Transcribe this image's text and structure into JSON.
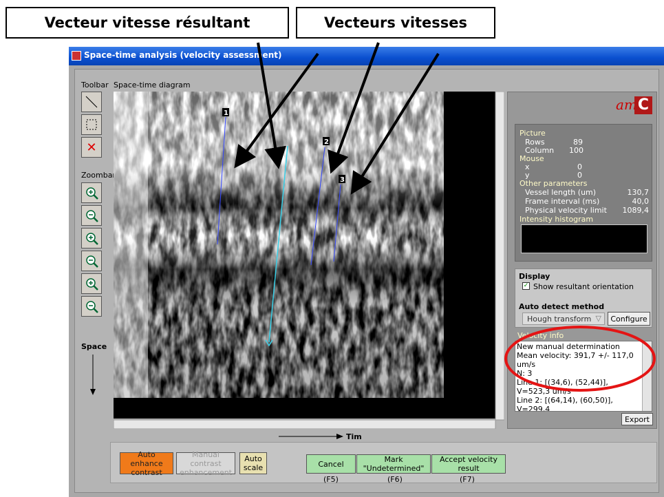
{
  "annotations": {
    "resultant_label": "Vecteur vitesse résultant",
    "vectors_label": "Vecteurs vitesses"
  },
  "window": {
    "title": "Space-time analysis (velocity assessment)"
  },
  "left": {
    "toolbar": "Toolbar",
    "diagram": "Space-time diagram",
    "zoombar": "Zoombar",
    "space": "Space",
    "time": "Tim"
  },
  "lines": {
    "labels": [
      "1",
      "2",
      "3"
    ]
  },
  "info": {
    "logo": "am",
    "picture": "Picture",
    "rows": {
      "label": "Rows",
      "value": "89"
    },
    "column": {
      "label": "Column",
      "value": "100"
    },
    "mouse": "Mouse",
    "x": {
      "label": "x",
      "value": "0"
    },
    "y": {
      "label": "y",
      "value": "0"
    },
    "other": "Other parameters",
    "params": [
      {
        "label": "Vessel length (um)",
        "value": "130,7"
      },
      {
        "label": "Frame interval (ms)",
        "value": "40,0"
      },
      {
        "label": "Physical velocity limit",
        "value": "1089,4"
      }
    ],
    "histogram": "Intensity histogram"
  },
  "display": {
    "title": "Display",
    "checkbox": "Show resultant orientation",
    "method_title": "Auto detect method",
    "method": "Hough transform",
    "configure": "Configure"
  },
  "velocity": {
    "title": "Velocity info",
    "lines": [
      "New manual determination",
      "Mean velocity: 391,7 +/- 117,0 um/s",
      "N: 3",
      "Line 1: [(34,6), (52,44)], V=523,3 um/s",
      "Line 2: [(64,14), (60,50)], V=299,4"
    ],
    "export": "Export"
  },
  "buttons": {
    "auto_enhance": "Auto enhance contrast",
    "manual": "Manual contrast enhancement",
    "auto_scale": "Auto scale",
    "cancel": "Cancel",
    "cancel_key": "(F5)",
    "mark": "Mark \"Undetermined\"",
    "mark_key": "(F6)",
    "accept": "Accept velocity result",
    "accept_key": "(F7)"
  }
}
